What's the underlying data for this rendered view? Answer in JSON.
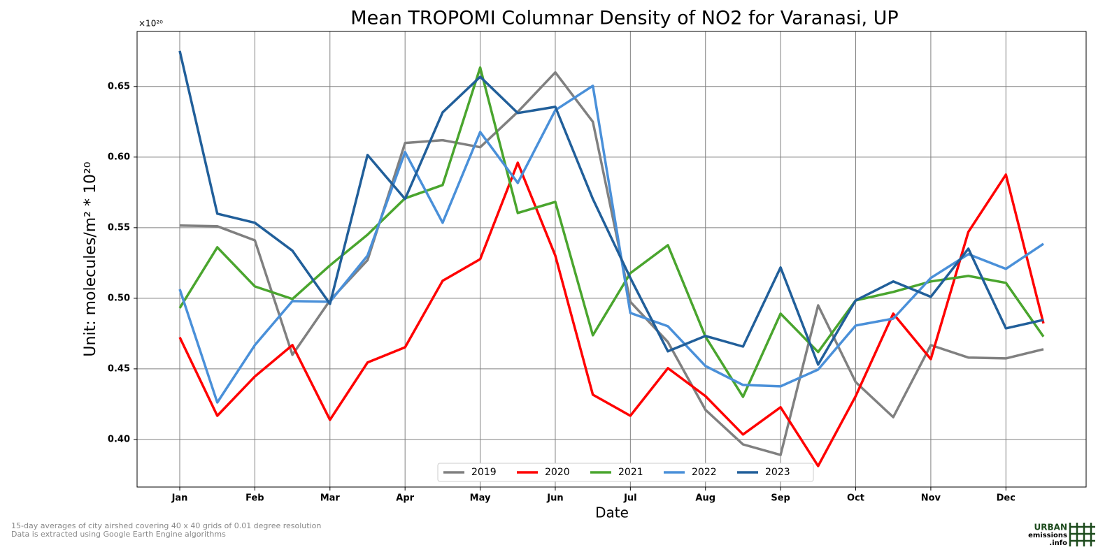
{
  "chart_data": {
    "type": "line",
    "title": "Mean TROPOMI Columnar Density of NO2 for Varanasi, UP",
    "xlabel": "Date",
    "ylabel": "Unit: molecules/m² * 10²⁰",
    "offset_label": "×10²⁰",
    "categories": [
      "Jan",
      null,
      "Feb",
      null,
      "Mar",
      null,
      "Apr",
      null,
      "May",
      null,
      "Jun",
      null,
      "Jul",
      null,
      "Aug",
      null,
      "Sep",
      null,
      "Oct",
      null,
      "Nov",
      null,
      "Dec",
      null
    ],
    "series": [
      {
        "name": "2019",
        "color": "#808080",
        "values": [
          0.5515,
          0.551,
          0.541,
          0.46,
          0.4985,
          0.527,
          0.61,
          0.612,
          0.607,
          0.632,
          0.66,
          0.625,
          0.4975,
          0.469,
          0.421,
          0.3965,
          0.389,
          0.495,
          0.4406,
          0.4158,
          0.4668,
          0.458,
          0.4574,
          0.4639
        ]
      },
      {
        "name": "2020",
        "color": "#ff0000",
        "values": [
          0.4723,
          0.4168,
          0.4446,
          0.4668,
          0.4139,
          0.4545,
          0.4653,
          0.5124,
          0.5277,
          0.596,
          0.5302,
          0.4317,
          0.4168,
          0.4505,
          0.4307,
          0.4035,
          0.4228,
          0.3812,
          0.4307,
          0.4891,
          0.4569,
          0.547,
          0.5876,
          0.4822
        ]
      },
      {
        "name": "2021",
        "color": "#4aa52e",
        "values": [
          0.4931,
          0.5361,
          0.5084,
          0.4995,
          0.5233,
          0.545,
          0.5708,
          0.5802,
          0.6634,
          0.5604,
          0.5683,
          0.4738,
          0.5178,
          0.5376,
          0.4728,
          0.4302,
          0.4891,
          0.4619,
          0.4985,
          0.5045,
          0.5119,
          0.5158,
          0.5109,
          0.4728
        ]
      },
      {
        "name": "2022",
        "color": "#4a90d9",
        "values": [
          0.5064,
          0.4262,
          0.4668,
          0.498,
          0.4975,
          0.5302,
          0.6035,
          0.5535,
          0.6178,
          0.5817,
          0.6332,
          0.6505,
          0.4896,
          0.4802,
          0.452,
          0.4386,
          0.4376,
          0.4495,
          0.4807,
          0.4856,
          0.5144,
          0.5312,
          0.5208,
          0.5386
        ]
      },
      {
        "name": "2023",
        "color": "#215f9a",
        "values": [
          0.6752,
          0.5599,
          0.5535,
          0.5337,
          0.496,
          0.6015,
          0.5703,
          0.6317,
          0.6569,
          0.6312,
          0.6356,
          0.5703,
          0.5144,
          0.4624,
          0.4733,
          0.4658,
          0.5218,
          0.453,
          0.4985,
          0.5119,
          0.501,
          0.5351,
          0.4787,
          0.4847
        ]
      }
    ],
    "ylim": [
      0.3663,
      0.689
    ],
    "yticks": [
      {
        "value": 0.4,
        "label": "0.40"
      },
      0.45,
      {
        "value": 0.5,
        "label": "0.50"
      },
      0.55,
      {
        "value": 0.6,
        "label": "0.60"
      },
      0.65
    ],
    "grid": true,
    "legend": "lower center",
    "footnotes": [
      "15-day averages of city airshed covering 40 x 40 grids of 0.01 degree resolution",
      "Data is extracted using Google Earth Engine algorithms"
    ],
    "logo": [
      "URBAN",
      "emissions",
      ".info"
    ]
  }
}
